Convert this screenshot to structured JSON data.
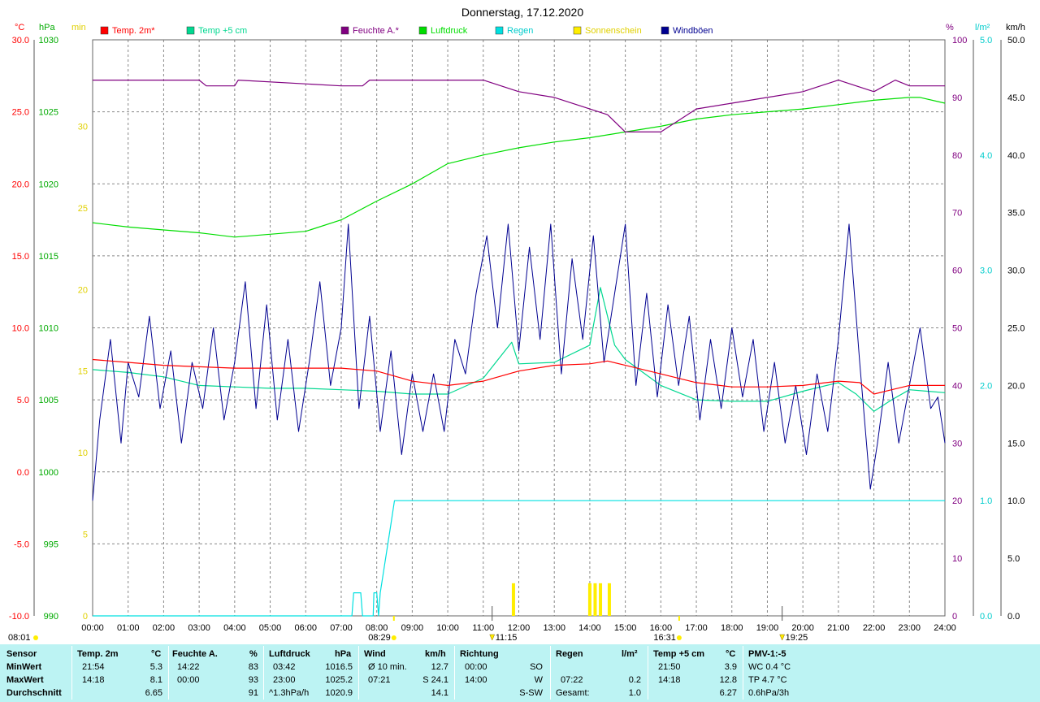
{
  "title": "Donnerstag, 17.12.2020",
  "axes": {
    "temp_unit": "°C",
    "pressure_unit": "hPa",
    "sun_unit": "min",
    "humidity_unit": "%",
    "rain_unit": "l/m²",
    "wind_unit": "km/h",
    "temp_ticks": [
      "30.0",
      "25.0",
      "20.0",
      "15.0",
      "10.0",
      "5.0",
      "0.0",
      "-5.0",
      "-10.0"
    ],
    "pressure_ticks": [
      "1030",
      "1025",
      "1020",
      "1015",
      "1010",
      "1005",
      "1000",
      "995",
      "990"
    ],
    "sun_ticks": [
      "30",
      "25",
      "20",
      "15",
      "10",
      "5",
      "0"
    ],
    "humidity_ticks": [
      "100",
      "90",
      "80",
      "70",
      "60",
      "50",
      "40",
      "30",
      "20",
      "10",
      "0"
    ],
    "rain_ticks": [
      "5.0",
      "4.0",
      "3.0",
      "2.0",
      "1.0",
      "0.0"
    ],
    "wind_ticks": [
      "50.0",
      "45.0",
      "40.0",
      "35.0",
      "30.0",
      "25.0",
      "20.0",
      "15.0",
      "10.0",
      "5.0",
      "0.0"
    ],
    "time_ticks": [
      "00:00",
      "01:00",
      "02:00",
      "03:00",
      "04:00",
      "05:00",
      "06:00",
      "07:00",
      "08:00",
      "09:00",
      "10:00",
      "11:00",
      "12:00",
      "13:00",
      "14:00",
      "15:00",
      "16:00",
      "17:00",
      "18:00",
      "19:00",
      "20:00",
      "21:00",
      "22:00",
      "23:00",
      "24:00"
    ]
  },
  "sun_events": {
    "dawn": "08:01",
    "sunrise": "08:29",
    "noon": "11:15",
    "sunset": "16:31",
    "dusk": "19:25"
  },
  "colors": {
    "temp2m": "#ff0000",
    "temp5cm": "#00d890",
    "humidity": "#800080",
    "pressure": "#00dd00",
    "rain": "#00e0e0",
    "sunshine": "#ffee00",
    "wind": "#000090",
    "stats_bg": "#bcf3f3"
  },
  "chart_data": {
    "type": "line",
    "x_unit": "hour of day",
    "xlim": [
      0,
      24
    ],
    "legend": [
      {
        "name": "Temp. 2m*",
        "color": "#ff0000"
      },
      {
        "name": "Temp +5 cm",
        "color": "#00d890"
      },
      {
        "name": "Feuchte A.*",
        "color": "#800080"
      },
      {
        "name": "Luftdruck",
        "color": "#00dd00"
      },
      {
        "name": "Regen",
        "color": "#00e0e0"
      },
      {
        "name": "Sonnenschein",
        "color": "#ffee00"
      },
      {
        "name": "Windböen",
        "color": "#000090"
      }
    ],
    "series": [
      {
        "name": "Temp. 2m*",
        "axis": "temp",
        "ylim": [
          -10,
          30
        ],
        "points": [
          [
            0,
            7.8
          ],
          [
            1,
            7.6
          ],
          [
            2,
            7.4
          ],
          [
            3,
            7.3
          ],
          [
            4,
            7.2
          ],
          [
            5,
            7.2
          ],
          [
            6,
            7.2
          ],
          [
            7,
            7.2
          ],
          [
            8,
            7.0
          ],
          [
            9,
            6.3
          ],
          [
            10,
            6.0
          ],
          [
            11,
            6.3
          ],
          [
            12,
            7.0
          ],
          [
            13,
            7.4
          ],
          [
            14,
            7.5
          ],
          [
            14.5,
            7.7
          ],
          [
            15,
            7.4
          ],
          [
            16,
            6.8
          ],
          [
            17,
            6.2
          ],
          [
            18,
            5.9
          ],
          [
            19,
            5.9
          ],
          [
            20,
            6.0
          ],
          [
            21,
            6.3
          ],
          [
            21.6,
            6.2
          ],
          [
            22,
            5.4
          ],
          [
            22.5,
            5.7
          ],
          [
            23,
            6.0
          ],
          [
            24,
            6.0
          ]
        ]
      },
      {
        "name": "Temp +5 cm",
        "axis": "temp",
        "ylim": [
          -10,
          30
        ],
        "points": [
          [
            0,
            7.1
          ],
          [
            1,
            6.9
          ],
          [
            2,
            6.6
          ],
          [
            3,
            6.0
          ],
          [
            4,
            5.9
          ],
          [
            5,
            5.8
          ],
          [
            6,
            5.8
          ],
          [
            7,
            5.7
          ],
          [
            8,
            5.6
          ],
          [
            9,
            5.4
          ],
          [
            10,
            5.4
          ],
          [
            11,
            6.5
          ],
          [
            11.8,
            9.0
          ],
          [
            12,
            7.5
          ],
          [
            13,
            7.6
          ],
          [
            14,
            8.8
          ],
          [
            14.3,
            12.8
          ],
          [
            14.7,
            8.8
          ],
          [
            15,
            7.8
          ],
          [
            16,
            6.0
          ],
          [
            17,
            5.0
          ],
          [
            18,
            4.9
          ],
          [
            19,
            4.9
          ],
          [
            20,
            5.6
          ],
          [
            21,
            6.2
          ],
          [
            21.5,
            5.4
          ],
          [
            22,
            4.2
          ],
          [
            22.5,
            5.0
          ],
          [
            23,
            5.7
          ],
          [
            24,
            5.5
          ]
        ]
      },
      {
        "name": "Feuchte A.*",
        "axis": "humidity",
        "ylim": [
          0,
          100
        ],
        "points": [
          [
            0,
            93
          ],
          [
            3,
            93
          ],
          [
            3.2,
            92
          ],
          [
            4,
            92
          ],
          [
            4.1,
            93
          ],
          [
            7,
            92
          ],
          [
            7.6,
            92
          ],
          [
            7.8,
            93
          ],
          [
            11,
            93
          ],
          [
            12,
            91
          ],
          [
            13,
            90
          ],
          [
            14,
            88
          ],
          [
            14.5,
            87
          ],
          [
            15,
            84
          ],
          [
            16,
            84
          ],
          [
            16.5,
            86
          ],
          [
            17,
            88
          ],
          [
            18,
            89
          ],
          [
            19,
            90
          ],
          [
            20,
            91
          ],
          [
            20.5,
            92
          ],
          [
            21,
            93
          ],
          [
            21.5,
            92
          ],
          [
            22,
            91
          ],
          [
            22.6,
            93
          ],
          [
            23,
            92
          ],
          [
            24,
            92
          ]
        ]
      },
      {
        "name": "Luftdruck",
        "axis": "pressure",
        "ylim": [
          990,
          1030
        ],
        "points": [
          [
            0,
            1017.3
          ],
          [
            1,
            1017.0
          ],
          [
            2,
            1016.8
          ],
          [
            3,
            1016.6
          ],
          [
            4,
            1016.3
          ],
          [
            5,
            1016.5
          ],
          [
            6,
            1016.7
          ],
          [
            7,
            1017.5
          ],
          [
            8,
            1018.8
          ],
          [
            9,
            1020.0
          ],
          [
            10,
            1021.4
          ],
          [
            11,
            1022.0
          ],
          [
            12,
            1022.5
          ],
          [
            13,
            1022.9
          ],
          [
            14,
            1023.2
          ],
          [
            15,
            1023.6
          ],
          [
            16,
            1024.0
          ],
          [
            17,
            1024.5
          ],
          [
            18,
            1024.8
          ],
          [
            19,
            1025.0
          ],
          [
            20,
            1025.2
          ],
          [
            21,
            1025.5
          ],
          [
            22,
            1025.8
          ],
          [
            23,
            1026.0
          ],
          [
            23.3,
            1026.0
          ],
          [
            24,
            1025.6
          ]
        ]
      },
      {
        "name": "Regen",
        "axis": "rain",
        "ylim": [
          0,
          5
        ],
        "points": [
          [
            0,
            0
          ],
          [
            7.3,
            0
          ],
          [
            7.35,
            0.2
          ],
          [
            7.55,
            0.2
          ],
          [
            7.6,
            0
          ],
          [
            7.9,
            0
          ],
          [
            7.92,
            0.2
          ],
          [
            8.0,
            0.2
          ],
          [
            8.05,
            0
          ],
          [
            8.1,
            0.2
          ],
          [
            8.2,
            0.4
          ],
          [
            8.3,
            0.6
          ],
          [
            8.4,
            0.8
          ],
          [
            8.5,
            1.0
          ],
          [
            24,
            1.0
          ]
        ]
      },
      {
        "name": "Sonnenschein",
        "axis": "sun",
        "ylim": [
          0,
          30
        ],
        "kind": "bar",
        "points": [
          [
            11.85,
            2
          ],
          [
            14.0,
            2
          ],
          [
            14.15,
            2
          ],
          [
            14.3,
            2
          ],
          [
            14.55,
            2
          ]
        ]
      },
      {
        "name": "Windböen",
        "axis": "wind",
        "ylim": [
          0,
          50
        ],
        "points": [
          [
            0,
            10
          ],
          [
            0.2,
            17
          ],
          [
            0.5,
            24
          ],
          [
            0.8,
            15
          ],
          [
            1.0,
            22
          ],
          [
            1.3,
            19
          ],
          [
            1.6,
            26
          ],
          [
            1.9,
            18
          ],
          [
            2.2,
            23
          ],
          [
            2.5,
            15
          ],
          [
            2.8,
            22
          ],
          [
            3.1,
            18
          ],
          [
            3.4,
            25
          ],
          [
            3.7,
            17
          ],
          [
            4.0,
            22
          ],
          [
            4.3,
            29
          ],
          [
            4.6,
            18
          ],
          [
            4.9,
            27
          ],
          [
            5.2,
            17
          ],
          [
            5.5,
            24
          ],
          [
            5.8,
            16
          ],
          [
            6.1,
            22
          ],
          [
            6.4,
            29
          ],
          [
            6.7,
            20
          ],
          [
            7.0,
            25
          ],
          [
            7.2,
            34
          ],
          [
            7.5,
            18
          ],
          [
            7.8,
            26
          ],
          [
            8.1,
            16
          ],
          [
            8.4,
            23
          ],
          [
            8.7,
            14
          ],
          [
            9.0,
            21
          ],
          [
            9.3,
            16
          ],
          [
            9.6,
            21
          ],
          [
            9.9,
            16
          ],
          [
            10.2,
            24
          ],
          [
            10.5,
            21
          ],
          [
            10.8,
            28
          ],
          [
            11.1,
            33
          ],
          [
            11.4,
            25
          ],
          [
            11.7,
            34
          ],
          [
            12.0,
            23
          ],
          [
            12.3,
            32
          ],
          [
            12.6,
            24
          ],
          [
            12.9,
            34
          ],
          [
            13.2,
            21
          ],
          [
            13.5,
            31
          ],
          [
            13.8,
            24
          ],
          [
            14.1,
            33
          ],
          [
            14.4,
            22
          ],
          [
            14.7,
            28
          ],
          [
            15.0,
            34
          ],
          [
            15.3,
            20
          ],
          [
            15.6,
            28
          ],
          [
            15.9,
            19
          ],
          [
            16.2,
            27
          ],
          [
            16.5,
            20
          ],
          [
            16.8,
            26
          ],
          [
            17.1,
            17
          ],
          [
            17.4,
            24
          ],
          [
            17.7,
            18
          ],
          [
            18.0,
            25
          ],
          [
            18.3,
            19
          ],
          [
            18.6,
            24
          ],
          [
            18.9,
            16
          ],
          [
            19.2,
            22
          ],
          [
            19.5,
            15
          ],
          [
            19.8,
            20
          ],
          [
            20.1,
            14
          ],
          [
            20.4,
            21
          ],
          [
            20.7,
            16
          ],
          [
            21.0,
            24
          ],
          [
            21.3,
            34
          ],
          [
            21.6,
            22
          ],
          [
            21.9,
            11
          ],
          [
            22.1,
            15
          ],
          [
            22.4,
            22
          ],
          [
            22.7,
            15
          ],
          [
            23.0,
            20
          ],
          [
            23.3,
            25
          ],
          [
            23.6,
            18
          ],
          [
            23.8,
            19
          ],
          [
            24,
            15
          ]
        ]
      }
    ]
  },
  "stats": {
    "row_labels": {
      "sensor": "Sensor",
      "min": "MinWert",
      "max": "MaxWert",
      "avg": "Durchschnitt"
    },
    "temp2m": {
      "title": "Temp. 2m",
      "unit": "°C",
      "min_time": "21:54",
      "min": "5.3",
      "max_time": "14:18",
      "max": "8.1",
      "avg": "6.65"
    },
    "humidity": {
      "title": "Feuchte A.",
      "unit": "%",
      "min_time": "14:22",
      "min": "83",
      "max_time": "00:00",
      "max": "93",
      "avg": "91"
    },
    "pressure": {
      "title": "Luftdruck",
      "unit": "hPa",
      "min_time": "03:42",
      "min": "1016.5",
      "max_time": "23:00",
      "max": "1025.2",
      "trend": "^1.3hPa/h",
      "avg": "1020.9"
    },
    "wind": {
      "title": "Wind",
      "unit": "km/h",
      "min_label": "Ø 10 min.",
      "min": "12.7",
      "max_time": "07:21",
      "max": "S 24.1",
      "avg": "14.1"
    },
    "direction": {
      "title": "Richtung",
      "min_time": "00:00",
      "min": "SO",
      "max_time": "14:00",
      "max": "W",
      "avg": "S-SW"
    },
    "rain": {
      "title": "Regen",
      "unit": "l/m²",
      "max_time": "07:22",
      "max": "0.2",
      "total_label": "Gesamt:",
      "total": "1.0"
    },
    "temp5cm": {
      "title": "Temp +5 cm",
      "unit": "°C",
      "min_time": "21:50",
      "min": "3.9",
      "max_time": "14:18",
      "max": "12.8",
      "avg": "6.27"
    },
    "pmv": {
      "title": "PMV-1:-5",
      "wc": "WC 0.4 °C",
      "tp": "TP 4.7 °C",
      "trend": "0.6hPa/3h"
    }
  }
}
